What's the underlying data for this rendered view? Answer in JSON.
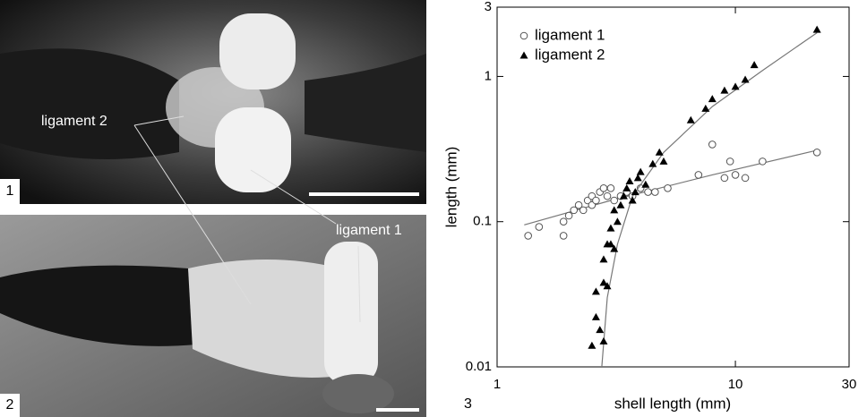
{
  "panels": {
    "photo1_number": "1",
    "photo2_number": "2",
    "chart_number": "3",
    "label_ligament2": "ligament 2",
    "label_ligament1": "ligament 1"
  },
  "chart_data": {
    "type": "scatter",
    "x_label": "shell length (mm)",
    "y_label": "length (mm)",
    "xscale": "log",
    "yscale": "log",
    "xlim": [
      1,
      30
    ],
    "ylim": [
      0.01,
      3
    ],
    "xticks": [
      1,
      10,
      30
    ],
    "yticks": [
      0.01,
      0.1,
      1,
      3
    ],
    "legend": "upper-left",
    "series": [
      {
        "name": "ligament 1",
        "marker": "open-circle",
        "color": "#555555",
        "x": [
          1.35,
          1.5,
          1.9,
          1.9,
          2.0,
          2.1,
          2.2,
          2.3,
          2.4,
          2.5,
          2.5,
          2.6,
          2.7,
          2.8,
          2.9,
          3.0,
          3.1,
          3.3,
          3.5,
          3.7,
          4.0,
          4.3,
          4.6,
          5.2,
          7.0,
          8.0,
          9.0,
          9.5,
          10,
          11,
          13,
          22
        ],
        "values": [
          0.08,
          0.092,
          0.08,
          0.1,
          0.11,
          0.12,
          0.13,
          0.12,
          0.14,
          0.13,
          0.15,
          0.14,
          0.16,
          0.17,
          0.15,
          0.17,
          0.14,
          0.15,
          0.16,
          0.15,
          0.17,
          0.16,
          0.16,
          0.17,
          0.21,
          0.34,
          0.2,
          0.26,
          0.21,
          0.2,
          0.26,
          0.3
        ],
        "fit": {
          "x": [
            1.3,
            3,
            8,
            22
          ],
          "values": [
            0.095,
            0.14,
            0.21,
            0.31
          ]
        }
      },
      {
        "name": "ligament 2",
        "marker": "filled-triangle",
        "color": "#000000",
        "x": [
          2.5,
          2.7,
          2.8,
          2.6,
          2.6,
          2.8,
          2.9,
          2.8,
          2.9,
          3.0,
          3.1,
          3.0,
          3.2,
          3.1,
          3.3,
          3.4,
          3.5,
          3.6,
          3.7,
          3.8,
          3.9,
          4.0,
          4.2,
          4.5,
          4.8,
          5.0,
          6.5,
          7.5,
          8,
          9,
          10,
          11,
          12,
          22
        ],
        "values": [
          0.014,
          0.018,
          0.015,
          0.022,
          0.033,
          0.038,
          0.036,
          0.055,
          0.07,
          0.07,
          0.065,
          0.09,
          0.1,
          0.12,
          0.13,
          0.15,
          0.17,
          0.19,
          0.14,
          0.16,
          0.2,
          0.22,
          0.18,
          0.25,
          0.3,
          0.26,
          0.5,
          0.6,
          0.7,
          0.8,
          0.85,
          0.95,
          1.2,
          2.1
        ],
        "fit": {
          "x": [
            2.75,
            2.9,
            3.2,
            3.7,
            5,
            8,
            13,
            22
          ],
          "values": [
            0.01,
            0.03,
            0.07,
            0.15,
            0.3,
            0.62,
            1.1,
            2.0
          ]
        }
      }
    ]
  }
}
